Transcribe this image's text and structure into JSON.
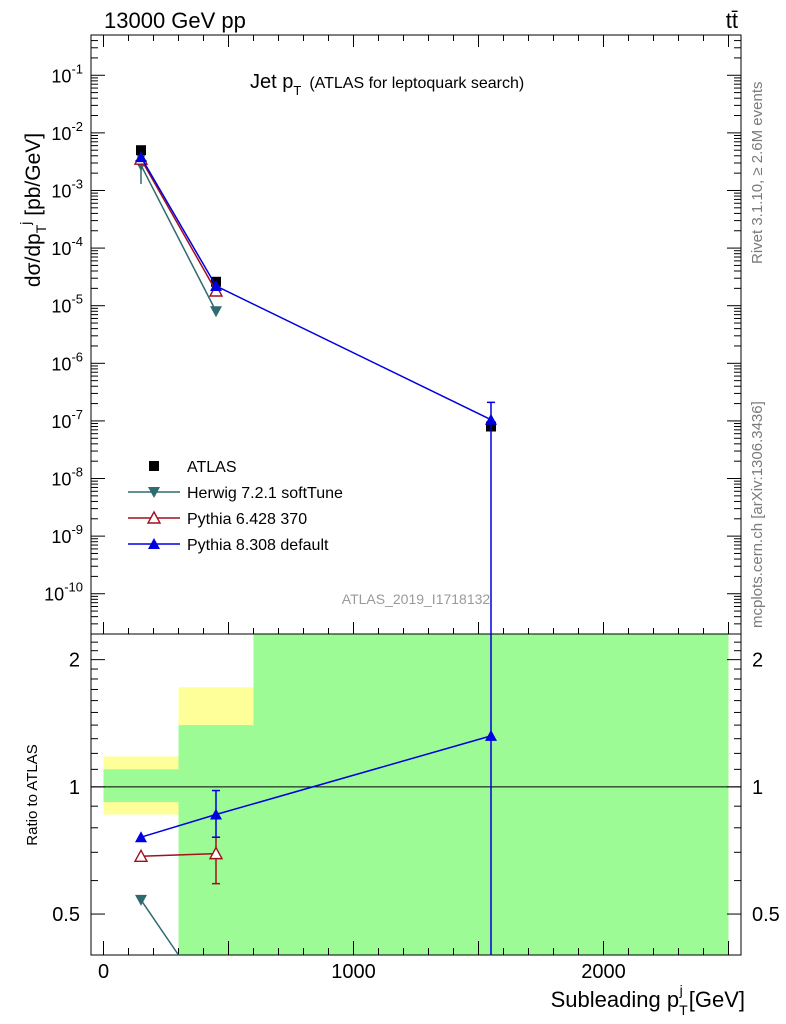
{
  "header": {
    "left": "13000 GeV pp",
    "right": "tt̄"
  },
  "side_text": {
    "rivet": "Rivet 3.1.10, ≥ 2.6M events",
    "mcplots": "mcplots.cern.ch [arXiv:1306.3436]"
  },
  "chart_data": [
    {
      "type": "scatter",
      "title": "Jet p_T (ATLAS for leptoquark search)",
      "title_main": "Jet p",
      "title_sub": "T",
      "title_rest": "(ATLAS for leptoquark search)",
      "ylabel": "dσ/dp_T^j [pb/GeV]",
      "yscale": "log",
      "ylim": [
        2e-11,
        0.5
      ],
      "xlim": [
        -50,
        2550
      ],
      "watermark": "ATLAS_2019_I1718132",
      "ytick_labels": [
        {
          "value": 1e-10,
          "label": "10^-10"
        },
        {
          "value": 1e-09,
          "label": "10^-9"
        },
        {
          "value": 1e-08,
          "label": "10^-8"
        },
        {
          "value": 1e-07,
          "label": "10^-7"
        },
        {
          "value": 1e-06,
          "label": "10^-6"
        },
        {
          "value": 1e-05,
          "label": "10^-5"
        },
        {
          "value": 0.0001,
          "label": "10^-4"
        },
        {
          "value": 0.001,
          "label": "10^-3"
        },
        {
          "value": 0.01,
          "label": "10^-2"
        },
        {
          "value": 0.1,
          "label": "10^-1"
        }
      ],
      "legend_position": "lower-left",
      "series": [
        {
          "name": "ATLAS",
          "color": "#000000",
          "marker": "square",
          "x": [
            150,
            450,
            1550
          ],
          "y": [
            0.005,
            2.6e-05,
            8e-08
          ]
        },
        {
          "name": "Herwig 7.2.1 softTune",
          "color": "#2f6a6e",
          "marker": "triangle-down",
          "x": [
            150,
            450
          ],
          "y": [
            0.00275,
            8e-06
          ],
          "yerr": [
            [
              150,
              0.0013,
              0.004
            ]
          ]
        },
        {
          "name": "Pythia 6.428 370",
          "color": "#a0101c",
          "marker": "triangle-up-open",
          "x": [
            150,
            450
          ],
          "y": [
            0.0035,
            1.8e-05
          ]
        },
        {
          "name": "Pythia 8.308 default",
          "color": "#0000e0",
          "marker": "triangle-up",
          "x": [
            150,
            450,
            1550
          ],
          "y": [
            0.0038,
            2.2e-05,
            1.05e-07
          ],
          "yerr": [
            [
              1550,
              1e-12,
              2.1e-07
            ]
          ]
        }
      ]
    },
    {
      "type": "scatter",
      "ylabel": "Ratio to ATLAS",
      "xlabel": "Subleading p_T^j [GeV]",
      "xlabel_main": "Subleading p",
      "xlabel_sub": "T",
      "xlabel_sup": "j",
      "xlabel_unit": "[GeV]",
      "yscale": "log",
      "ylim": [
        0.4,
        2.3
      ],
      "xlim": [
        -50,
        2550
      ],
      "xticks": [
        0,
        1000,
        2000
      ],
      "yticks": [
        0.5,
        1,
        2
      ],
      "ytick_labels": [
        "0.5",
        "1",
        "2"
      ],
      "reference_line": 1,
      "bands": [
        {
          "x0": 0,
          "x1": 300,
          "green": [
            0.92,
            1.1
          ],
          "yellow": [
            0.86,
            1.18
          ]
        },
        {
          "x0": 300,
          "x1": 600,
          "green": [
            0.4,
            1.4
          ],
          "yellow": [
            0.4,
            1.72
          ]
        },
        {
          "x0": 600,
          "x1": 2500,
          "green": [
            0.4,
            2.3
          ],
          "yellow": [
            0.4,
            2.3
          ]
        }
      ],
      "series": [
        {
          "name": "Herwig 7.2.1 softTune",
          "color": "#2f6a6e",
          "marker": "triangle-down",
          "x": [
            150,
            300
          ],
          "y": [
            0.54,
            0.4
          ],
          "marker_points": 1
        },
        {
          "name": "Pythia 6.428 370",
          "color": "#a0101c",
          "marker": "triangle-up-open",
          "x": [
            150,
            450
          ],
          "y": [
            0.685,
            0.695
          ],
          "yerr": [
            [
              450,
              0.59,
              0.76
            ]
          ]
        },
        {
          "name": "Pythia 8.308 default",
          "color": "#0000e0",
          "marker": "triangle-up",
          "x": [
            150,
            450,
            1550
          ],
          "y": [
            0.76,
            0.86,
            1.32
          ],
          "yerr": [
            [
              450,
              0.76,
              0.98
            ],
            [
              1550,
              0.3,
              2.3
            ]
          ]
        }
      ]
    }
  ]
}
